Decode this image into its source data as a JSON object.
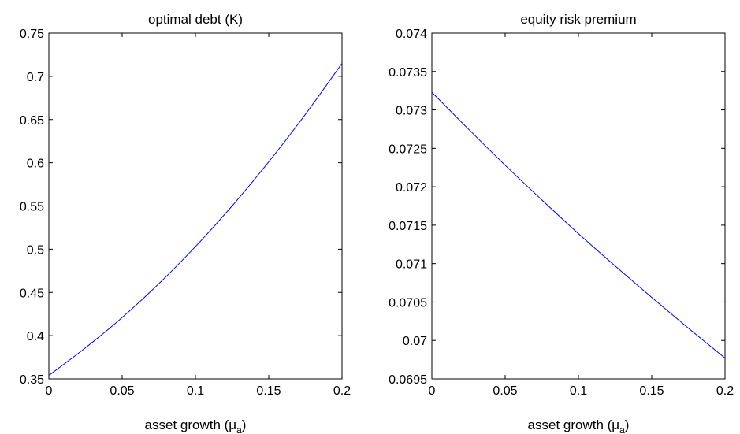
{
  "chart_data": [
    {
      "type": "line",
      "title": "optimal debt (K)",
      "xlabel_main": "asset growth (",
      "xlabel_greek": "μ",
      "xlabel_sub": "a",
      "xlabel_close": ")",
      "ylabel": "",
      "xlim": [
        0,
        0.2
      ],
      "ylim": [
        0.35,
        0.75
      ],
      "xticks": [
        0,
        0.05,
        0.1,
        0.15,
        0.2
      ],
      "xtick_labels": [
        "0",
        "0.05",
        "0.1",
        "0.15",
        "0.2"
      ],
      "yticks": [
        0.35,
        0.4,
        0.45,
        0.5,
        0.55,
        0.6,
        0.65,
        0.7,
        0.75
      ],
      "ytick_labels": [
        "0.35",
        "0.4",
        "0.45",
        "0.5",
        "0.55",
        "0.6",
        "0.65",
        "0.7",
        "0.75"
      ],
      "grid": false,
      "line_color": "#0000ff",
      "series": [
        {
          "x": [
            0,
            0.025,
            0.05,
            0.075,
            0.1,
            0.125,
            0.15,
            0.175,
            0.2
          ],
          "values": [
            0.354,
            0.386,
            0.421,
            0.46,
            0.503,
            0.55,
            0.601,
            0.656,
            0.715
          ]
        }
      ]
    },
    {
      "type": "line",
      "title": "equity risk premium",
      "xlabel_main": "asset growth (",
      "xlabel_greek": "μ",
      "xlabel_sub": "a",
      "xlabel_close": ")",
      "ylabel": "",
      "xlim": [
        0,
        0.2
      ],
      "ylim": [
        0.0695,
        0.074
      ],
      "xticks": [
        0,
        0.05,
        0.1,
        0.15,
        0.2
      ],
      "xtick_labels": [
        "0",
        "0.05",
        "0.1",
        "0.15",
        "0.2"
      ],
      "yticks": [
        0.0695,
        0.07,
        0.0705,
        0.071,
        0.0715,
        0.072,
        0.0725,
        0.073,
        0.0735,
        0.074
      ],
      "ytick_labels": [
        "0.0695",
        "0.07",
        "0.0705",
        "0.071",
        "0.0715",
        "0.072",
        "0.0725",
        "0.073",
        "0.0735",
        "0.074"
      ],
      "grid": false,
      "line_color": "#0000ff",
      "series": [
        {
          "x": [
            0,
            0.025,
            0.05,
            0.075,
            0.1,
            0.125,
            0.15,
            0.175,
            0.2
          ],
          "values": [
            0.07323,
            0.07275,
            0.07228,
            0.07183,
            0.07139,
            0.07097,
            0.07056,
            0.07016,
            0.06977
          ]
        }
      ]
    }
  ]
}
